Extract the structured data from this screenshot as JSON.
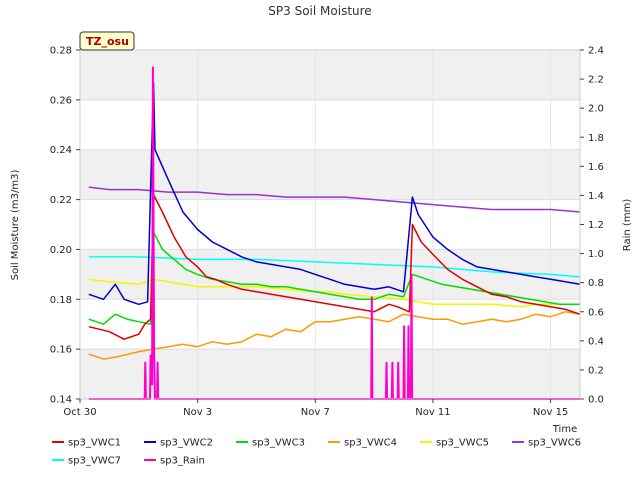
{
  "chart_data": {
    "type": "line",
    "title": "SP3 Soil Moisture",
    "badge": "TZ_osu",
    "ylabel": "Soil Moisture (m3/m3)",
    "y2label": "Rain (mm)",
    "xlabel": "Time",
    "x_range": [
      0,
      17
    ],
    "ylim": [
      0.14,
      0.28
    ],
    "y2lim": [
      0.0,
      2.4
    ],
    "x_ticks": [
      {
        "x": 0,
        "label": "Oct 30"
      },
      {
        "x": 4,
        "label": "Nov 3"
      },
      {
        "x": 8,
        "label": "Nov 7"
      },
      {
        "x": 12,
        "label": "Nov 11"
      },
      {
        "x": 16,
        "label": "Nov 15"
      }
    ],
    "y_ticks": [
      "0.14",
      "0.16",
      "0.18",
      "0.20",
      "0.22",
      "0.24",
      "0.26",
      "0.28"
    ],
    "y2_ticks": [
      "0.0",
      "0.2",
      "0.4",
      "0.6",
      "0.8",
      "1.0",
      "1.2",
      "1.4",
      "1.6",
      "1.8",
      "2.0",
      "2.2",
      "2.4"
    ],
    "x_unit_note": "x values are days elapsed from Oct 30",
    "grid": true,
    "legend_position": "bottom",
    "series": [
      {
        "name": "sp3_VWC1",
        "color": "#e00000",
        "axis": "left",
        "points": [
          [
            0.3,
            0.169
          ],
          [
            1.0,
            0.167
          ],
          [
            1.5,
            0.164
          ],
          [
            2.0,
            0.166
          ],
          [
            2.2,
            0.17
          ],
          [
            2.4,
            0.172
          ],
          [
            2.5,
            0.222
          ],
          [
            2.8,
            0.215
          ],
          [
            3.2,
            0.205
          ],
          [
            3.6,
            0.197
          ],
          [
            4.0,
            0.193
          ],
          [
            4.3,
            0.189
          ],
          [
            4.6,
            0.188
          ],
          [
            5.0,
            0.186
          ],
          [
            5.5,
            0.184
          ],
          [
            6.0,
            0.183
          ],
          [
            6.5,
            0.182
          ],
          [
            7.0,
            0.181
          ],
          [
            7.5,
            0.18
          ],
          [
            8.0,
            0.179
          ],
          [
            8.5,
            0.178
          ],
          [
            9.0,
            0.177
          ],
          [
            9.5,
            0.176
          ],
          [
            10.0,
            0.175
          ],
          [
            10.5,
            0.178
          ],
          [
            10.8,
            0.177
          ],
          [
            11.0,
            0.176
          ],
          [
            11.2,
            0.175
          ],
          [
            11.3,
            0.21
          ],
          [
            11.6,
            0.203
          ],
          [
            12.0,
            0.198
          ],
          [
            12.5,
            0.192
          ],
          [
            13.0,
            0.188
          ],
          [
            13.5,
            0.185
          ],
          [
            14.0,
            0.182
          ],
          [
            14.5,
            0.181
          ],
          [
            15.0,
            0.179
          ],
          [
            15.5,
            0.178
          ],
          [
            16.0,
            0.177
          ],
          [
            16.5,
            0.176
          ],
          [
            17.0,
            0.174
          ]
        ]
      },
      {
        "name": "sp3_VWC2",
        "color": "#0000cc",
        "axis": "left",
        "points": [
          [
            0.3,
            0.182
          ],
          [
            0.8,
            0.18
          ],
          [
            1.2,
            0.186
          ],
          [
            1.5,
            0.18
          ],
          [
            2.0,
            0.178
          ],
          [
            2.3,
            0.179
          ],
          [
            2.5,
            0.267
          ],
          [
            2.55,
            0.24
          ],
          [
            3.0,
            0.228
          ],
          [
            3.5,
            0.215
          ],
          [
            4.0,
            0.208
          ],
          [
            4.5,
            0.203
          ],
          [
            5.0,
            0.2
          ],
          [
            5.5,
            0.197
          ],
          [
            6.0,
            0.195
          ],
          [
            6.5,
            0.194
          ],
          [
            7.0,
            0.193
          ],
          [
            7.5,
            0.192
          ],
          [
            8.0,
            0.19
          ],
          [
            8.5,
            0.188
          ],
          [
            9.0,
            0.186
          ],
          [
            9.5,
            0.185
          ],
          [
            10.0,
            0.184
          ],
          [
            10.5,
            0.185
          ],
          [
            11.0,
            0.183
          ],
          [
            11.3,
            0.221
          ],
          [
            11.5,
            0.214
          ],
          [
            12.0,
            0.205
          ],
          [
            12.5,
            0.2
          ],
          [
            13.0,
            0.196
          ],
          [
            13.5,
            0.193
          ],
          [
            14.0,
            0.192
          ],
          [
            14.5,
            0.191
          ],
          [
            15.0,
            0.19
          ],
          [
            15.5,
            0.189
          ],
          [
            16.0,
            0.188
          ],
          [
            16.5,
            0.187
          ],
          [
            17.0,
            0.186
          ]
        ]
      },
      {
        "name": "sp3_VWC3",
        "color": "#00dd00",
        "axis": "left",
        "points": [
          [
            0.3,
            0.172
          ],
          [
            0.8,
            0.17
          ],
          [
            1.2,
            0.174
          ],
          [
            1.6,
            0.172
          ],
          [
            2.0,
            0.171
          ],
          [
            2.4,
            0.17
          ],
          [
            2.5,
            0.207
          ],
          [
            2.8,
            0.2
          ],
          [
            3.2,
            0.196
          ],
          [
            3.6,
            0.192
          ],
          [
            4.0,
            0.19
          ],
          [
            4.5,
            0.188
          ],
          [
            5.0,
            0.187
          ],
          [
            5.5,
            0.186
          ],
          [
            6.0,
            0.186
          ],
          [
            6.5,
            0.185
          ],
          [
            7.0,
            0.185
          ],
          [
            7.5,
            0.184
          ],
          [
            8.0,
            0.183
          ],
          [
            8.5,
            0.182
          ],
          [
            9.0,
            0.181
          ],
          [
            9.5,
            0.18
          ],
          [
            10.0,
            0.18
          ],
          [
            10.5,
            0.182
          ],
          [
            11.0,
            0.181
          ],
          [
            11.3,
            0.19
          ],
          [
            11.8,
            0.188
          ],
          [
            12.3,
            0.186
          ],
          [
            12.8,
            0.185
          ],
          [
            13.3,
            0.184
          ],
          [
            13.8,
            0.183
          ],
          [
            14.3,
            0.182
          ],
          [
            14.8,
            0.181
          ],
          [
            15.3,
            0.18
          ],
          [
            15.8,
            0.179
          ],
          [
            16.3,
            0.178
          ],
          [
            17.0,
            0.178
          ]
        ]
      },
      {
        "name": "sp3_VWC4",
        "color": "#ff9900",
        "axis": "left",
        "points": [
          [
            0.3,
            0.158
          ],
          [
            0.8,
            0.156
          ],
          [
            1.3,
            0.157
          ],
          [
            2.0,
            0.159
          ],
          [
            2.5,
            0.16
          ],
          [
            3.0,
            0.161
          ],
          [
            3.5,
            0.162
          ],
          [
            4.0,
            0.161
          ],
          [
            4.5,
            0.163
          ],
          [
            5.0,
            0.162
          ],
          [
            5.5,
            0.163
          ],
          [
            6.0,
            0.166
          ],
          [
            6.5,
            0.165
          ],
          [
            7.0,
            0.168
          ],
          [
            7.5,
            0.167
          ],
          [
            8.0,
            0.171
          ],
          [
            8.5,
            0.171
          ],
          [
            9.0,
            0.172
          ],
          [
            9.5,
            0.173
          ],
          [
            10.0,
            0.172
          ],
          [
            10.5,
            0.171
          ],
          [
            11.0,
            0.174
          ],
          [
            11.5,
            0.173
          ],
          [
            12.0,
            0.172
          ],
          [
            12.5,
            0.172
          ],
          [
            13.0,
            0.17
          ],
          [
            13.5,
            0.171
          ],
          [
            14.0,
            0.172
          ],
          [
            14.5,
            0.171
          ],
          [
            15.0,
            0.172
          ],
          [
            15.5,
            0.174
          ],
          [
            16.0,
            0.173
          ],
          [
            16.5,
            0.175
          ],
          [
            17.0,
            0.174
          ]
        ]
      },
      {
        "name": "sp3_VWC5",
        "color": "#f5f500",
        "axis": "left",
        "points": [
          [
            0.3,
            0.188
          ],
          [
            1.0,
            0.187
          ],
          [
            2.0,
            0.186
          ],
          [
            2.5,
            0.188
          ],
          [
            3.0,
            0.187
          ],
          [
            4.0,
            0.185
          ],
          [
            5.0,
            0.185
          ],
          [
            6.0,
            0.185
          ],
          [
            7.0,
            0.184
          ],
          [
            8.0,
            0.183
          ],
          [
            8.5,
            0.183
          ],
          [
            9.0,
            0.182
          ],
          [
            10.0,
            0.181
          ],
          [
            11.0,
            0.18
          ],
          [
            11.5,
            0.179
          ],
          [
            12.0,
            0.178
          ],
          [
            13.0,
            0.178
          ],
          [
            14.0,
            0.178
          ],
          [
            15.0,
            0.177
          ],
          [
            15.5,
            0.178
          ],
          [
            16.0,
            0.178
          ],
          [
            17.0,
            0.178
          ]
        ]
      },
      {
        "name": "sp3_VWC6",
        "color": "#9933cc",
        "axis": "left",
        "points": [
          [
            0.3,
            0.225
          ],
          [
            1.0,
            0.224
          ],
          [
            2.0,
            0.224
          ],
          [
            3.0,
            0.223
          ],
          [
            4.0,
            0.223
          ],
          [
            5.0,
            0.222
          ],
          [
            6.0,
            0.222
          ],
          [
            7.0,
            0.221
          ],
          [
            8.0,
            0.221
          ],
          [
            9.0,
            0.221
          ],
          [
            10.0,
            0.22
          ],
          [
            11.0,
            0.219
          ],
          [
            12.0,
            0.218
          ],
          [
            13.0,
            0.217
          ],
          [
            14.0,
            0.216
          ],
          [
            15.0,
            0.216
          ],
          [
            16.0,
            0.216
          ],
          [
            17.0,
            0.215
          ]
        ]
      },
      {
        "name": "sp3_VWC7",
        "color": "#00ffff",
        "axis": "left",
        "points": [
          [
            0.3,
            0.197
          ],
          [
            2.0,
            0.197
          ],
          [
            4.0,
            0.196
          ],
          [
            6.0,
            0.196
          ],
          [
            8.0,
            0.195
          ],
          [
            10.0,
            0.194
          ],
          [
            12.0,
            0.193
          ],
          [
            14.0,
            0.191
          ],
          [
            16.0,
            0.19
          ],
          [
            17.0,
            0.189
          ]
        ]
      },
      {
        "name": "sp3_Rain",
        "color": "#ff00cc",
        "axis": "right",
        "points": [
          [
            0.3,
            0.0
          ],
          [
            2.2,
            0.0
          ],
          [
            2.22,
            0.25
          ],
          [
            2.24,
            0.0
          ],
          [
            2.38,
            0.0
          ],
          [
            2.4,
            0.3
          ],
          [
            2.45,
            0.1
          ],
          [
            2.48,
            2.28
          ],
          [
            2.52,
            0.3
          ],
          [
            2.55,
            0.0
          ],
          [
            2.62,
            0.0
          ],
          [
            2.64,
            0.25
          ],
          [
            2.66,
            0.0
          ],
          [
            9.9,
            0.0
          ],
          [
            9.92,
            0.7
          ],
          [
            9.94,
            0.0
          ],
          [
            10.4,
            0.0
          ],
          [
            10.42,
            0.25
          ],
          [
            10.44,
            0.0
          ],
          [
            10.6,
            0.0
          ],
          [
            10.62,
            0.25
          ],
          [
            10.64,
            0.0
          ],
          [
            10.8,
            0.0
          ],
          [
            10.82,
            0.25
          ],
          [
            10.84,
            0.0
          ],
          [
            11.0,
            0.0
          ],
          [
            11.02,
            0.5
          ],
          [
            11.04,
            0.0
          ],
          [
            11.15,
            0.0
          ],
          [
            11.17,
            0.5
          ],
          [
            11.19,
            0.0
          ],
          [
            11.25,
            0.0
          ],
          [
            11.27,
            0.85
          ],
          [
            11.29,
            0.0
          ],
          [
            17.0,
            0.0
          ]
        ]
      }
    ]
  }
}
